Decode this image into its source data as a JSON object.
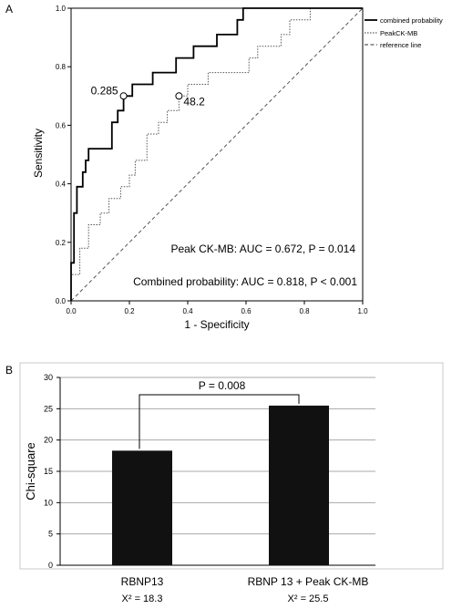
{
  "chart_data": [
    {
      "type": "line",
      "panel_label": "A",
      "xlabel": "1 - Specificity",
      "ylabel": "Sensitivity",
      "xlim": [
        0,
        1
      ],
      "ylim": [
        0,
        1
      ],
      "x_ticks": [
        "0.0",
        "0.2",
        "0.4",
        "0.6",
        "0.8",
        "1.0"
      ],
      "y_ticks": [
        "0.0",
        "0.2",
        "0.4",
        "0.6",
        "0.8",
        "1.0"
      ],
      "legend_position": "top-right",
      "series": [
        {
          "name": "combined probability",
          "style": "solid",
          "x": [
            0,
            0,
            0.01,
            0.01,
            0.02,
            0.02,
            0.04,
            0.04,
            0.05,
            0.05,
            0.06,
            0.06,
            0.14,
            0.14,
            0.14,
            0.14,
            0.14,
            0.14,
            0.16,
            0.16,
            0.18,
            0.18,
            0.21,
            0.21,
            0.25,
            0.25,
            0.28,
            0.28,
            0.34,
            0.34,
            0.36,
            0.36,
            0.42,
            0.42,
            0.5,
            0.5,
            0.55,
            0.55,
            0.57,
            0.57,
            0.59,
            0.59,
            0.61,
            0.61,
            0.63,
            0.63,
            1.0
          ],
          "y": [
            0,
            0.13,
            0.13,
            0.3,
            0.3,
            0.39,
            0.39,
            0.44,
            0.44,
            0.48,
            0.48,
            0.52,
            0.52,
            0.57,
            0.57,
            0.61,
            0.61,
            0.61,
            0.61,
            0.65,
            0.65,
            0.7,
            0.7,
            0.74,
            0.74,
            0.74,
            0.74,
            0.78,
            0.78,
            0.78,
            0.78,
            0.83,
            0.83,
            0.87,
            0.87,
            0.91,
            0.91,
            0.91,
            0.91,
            0.96,
            0.96,
            1.0,
            1.0,
            1.0,
            1.0,
            1.0,
            1.0
          ]
        },
        {
          "name": "PeakCK-MB",
          "style": "dotted",
          "x": [
            0,
            0,
            0.03,
            0.03,
            0.06,
            0.06,
            0.1,
            0.1,
            0.13,
            0.13,
            0.17,
            0.17,
            0.2,
            0.2,
            0.22,
            0.22,
            0.26,
            0.26,
            0.3,
            0.3,
            0.33,
            0.33,
            0.37,
            0.37,
            0.4,
            0.4,
            0.43,
            0.43,
            0.47,
            0.47,
            0.53,
            0.53,
            0.57,
            0.57,
            0.61,
            0.61,
            0.64,
            0.64,
            0.68,
            0.68,
            0.72,
            0.72,
            0.75,
            0.75,
            0.78,
            0.78,
            0.82,
            0.82,
            0.86,
            0.86,
            0.87,
            0.87,
            1.0
          ],
          "y": [
            0,
            0.09,
            0.09,
            0.18,
            0.18,
            0.26,
            0.26,
            0.3,
            0.3,
            0.35,
            0.35,
            0.39,
            0.39,
            0.43,
            0.43,
            0.48,
            0.48,
            0.57,
            0.57,
            0.61,
            0.61,
            0.65,
            0.65,
            0.7,
            0.7,
            0.74,
            0.74,
            0.74,
            0.74,
            0.78,
            0.78,
            0.78,
            0.78,
            0.78,
            0.78,
            0.83,
            0.83,
            0.87,
            0.87,
            0.87,
            0.87,
            0.91,
            0.91,
            0.96,
            0.96,
            0.96,
            0.96,
            1.0,
            1.0,
            1.0,
            1.0,
            1.0,
            1.0
          ]
        },
        {
          "name": "reference line",
          "style": "dashed",
          "x": [
            0,
            1
          ],
          "y": [
            0,
            1
          ]
        }
      ],
      "cutoff_points": [
        {
          "label": "0.285",
          "x": 0.18,
          "y": 0.7,
          "series": "combined probability"
        },
        {
          "label": "48.2",
          "x": 0.37,
          "y": 0.7,
          "series": "PeakCK-MB"
        }
      ],
      "annotations": [
        "Peak CK-MB: AUC = 0.672, P = 0.014",
        "Combined probability: AUC = 0.818, P < 0.001"
      ]
    },
    {
      "type": "bar",
      "panel_label": "B",
      "ylabel": "Chi-square",
      "xlabel": "",
      "ylim": [
        0,
        30
      ],
      "y_ticks": [
        "0",
        "5",
        "10",
        "15",
        "20",
        "25",
        "30"
      ],
      "grid": true,
      "categories": [
        "RBNP13",
        "RBNP 13 + Peak CK-MB"
      ],
      "category_stats": [
        "X² = 18.3",
        "X² = 25.5"
      ],
      "values": [
        18.3,
        25.5
      ],
      "bar_color": "#111111",
      "significance_label": "P = 0.008"
    }
  ]
}
